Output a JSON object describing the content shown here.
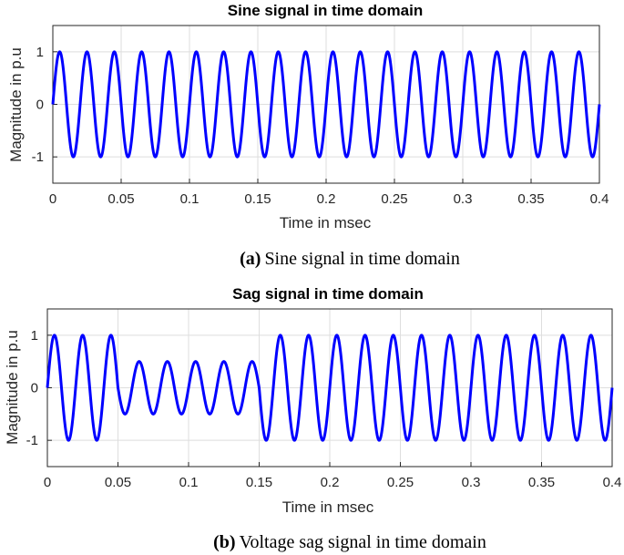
{
  "chart_data": [
    {
      "type": "line",
      "title": "Sine signal in time domain",
      "xlabel": "Time in msec",
      "ylabel": "Magnitude in p.u",
      "xlim": [
        0,
        0.4
      ],
      "ylim": [
        -1.5,
        1.5
      ],
      "x_ticks": [
        "0",
        "0.05",
        "0.1",
        "0.15",
        "0.2",
        "0.25",
        "0.3",
        "0.35",
        "0.4"
      ],
      "y_ticks": [
        "-1",
        "0",
        "1"
      ],
      "grid": true,
      "line_color": "#0000ff",
      "series": [
        {
          "function": "sine",
          "frequency_cycles_per_msec": 50,
          "amplitude": 1,
          "sag_interval": null,
          "sag_amplitude": null
        }
      ],
      "caption": {
        "tag": "(a)",
        "text": "Sine signal in time domain"
      }
    },
    {
      "type": "line",
      "title": "Sag signal in time domain",
      "xlabel": "Time in msec",
      "ylabel": "Magnitude in p.u",
      "xlim": [
        0,
        0.4
      ],
      "ylim": [
        -1.5,
        1.5
      ],
      "x_ticks": [
        "0",
        "0.05",
        "0.1",
        "0.15",
        "0.2",
        "0.25",
        "0.3",
        "0.35",
        "0.4"
      ],
      "y_ticks": [
        "-1",
        "0",
        "1"
      ],
      "grid": true,
      "line_color": "#0000ff",
      "series": [
        {
          "function": "sine",
          "frequency_cycles_per_msec": 50,
          "amplitude": 1,
          "sag_interval": [
            0.05,
            0.15
          ],
          "sag_amplitude": 0.5
        }
      ],
      "caption": {
        "tag": "(b)",
        "text": "Voltage sag signal in time domain"
      }
    }
  ]
}
